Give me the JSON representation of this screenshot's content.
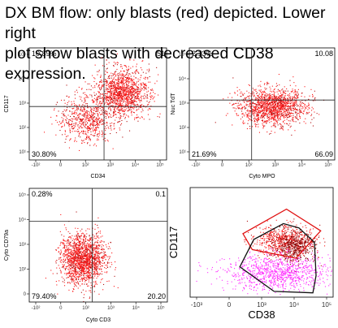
{
  "caption": {
    "line1": "DX BM flow: only blasts (red) depicted. Lower right",
    "line2": "plot show blasts with decreased CD38 expression."
  },
  "colors": {
    "blast": "#ff1a1a",
    "blast_dark": "#b01010",
    "dark_red": "#8b0a0a",
    "magenta": "#ff2bff",
    "gate_red": "#e01010",
    "gate_black": "#111111",
    "axis": "#000000"
  },
  "chart_data": [
    {
      "type": "scatter",
      "title": "",
      "xlabel": "CD34",
      "ylabel": "CD117",
      "x_ticks": [
        "-10²",
        "0",
        "10²",
        "10³",
        "10⁴",
        "10⁵"
      ],
      "y_ticks": [
        "10¹",
        "10²",
        "10³",
        "10⁴",
        "10⁵"
      ],
      "quadrant_percent": {
        "upper_left": "10.89%",
        "upper_right": "51",
        "lower_left": "30.80%"
      },
      "populations": [
        {
          "cx": 3.2,
          "cy": 3.3,
          "sx": 0.55,
          "sy": 0.45,
          "n": 1300,
          "color": "blast"
        },
        {
          "cx": 1.8,
          "cy": 2.3,
          "sx": 0.6,
          "sy": 0.45,
          "n": 700,
          "color": "blast"
        }
      ],
      "xlim": [
        -0.6,
        5.0
      ],
      "ylim": [
        0.7,
        5.0
      ],
      "gate": [
        2.45,
        2.75
      ]
    },
    {
      "type": "scatter",
      "title": "",
      "xlabel": "Cyto MPO",
      "ylabel": "Nuc TdT",
      "x_ticks": [
        "-10²",
        "0",
        "10²",
        "10³",
        "10⁴",
        "10⁵"
      ],
      "y_ticks": [
        "10¹",
        "10²",
        "10³",
        "10⁴",
        "10⁵"
      ],
      "quadrant_percent": {
        "upper_left": "2.13%",
        "upper_right": "10.08",
        "lower_left": "21.69%",
        "lower_right": "66.09"
      },
      "populations": [
        {
          "cx": 2.6,
          "cy": 2.75,
          "sx": 0.65,
          "sy": 0.35,
          "n": 1500,
          "color": "blast"
        }
      ],
      "xlim": [
        -0.6,
        5.0
      ],
      "ylim": [
        0.7,
        5.0
      ],
      "gate": [
        1.8,
        3.0
      ]
    },
    {
      "type": "scatter",
      "title": "",
      "xlabel": "Cyto CD3",
      "ylabel": "Cyto CD79a",
      "x_ticks": [
        "-10²",
        "0",
        "10²",
        "10³",
        "10⁴",
        "10⁵"
      ],
      "y_ticks": [
        "0",
        "10²",
        "10³",
        "10⁴",
        "10⁵"
      ],
      "quadrant_percent": {
        "upper_left": "0.28%",
        "upper_right": "0.1",
        "lower_left": "79.40%",
        "lower_right": "20.20"
      },
      "populations": [
        {
          "cx": 1.55,
          "cy": 1.9,
          "sx": 0.45,
          "sy": 0.55,
          "n": 1700,
          "color": "blast"
        }
      ],
      "xlim": [
        -0.6,
        5.0
      ],
      "ylim": [
        0.0,
        5.0
      ],
      "gate": [
        1.95,
        3.55
      ]
    },
    {
      "type": "scatter",
      "title": "",
      "xlabel": "CD38",
      "ylabel": "CD117",
      "x_ticks": [
        "-10³",
        "0",
        "10³",
        "10⁴",
        "10⁵"
      ],
      "y_ticks": [],
      "populations": [
        {
          "cx": 3.05,
          "cy": 2.95,
          "sx": 0.45,
          "sy": 0.28,
          "n": 700,
          "color": "blast"
        },
        {
          "cx": 3.35,
          "cy": 2.75,
          "sx": 0.32,
          "sy": 0.25,
          "n": 420,
          "color": "dark_red"
        },
        {
          "cx": 2.85,
          "cy": 1.85,
          "sx": 0.85,
          "sy": 0.3,
          "n": 1000,
          "color": "magenta"
        }
      ],
      "xlim": [
        0.0,
        4.6
      ],
      "ylim": [
        1.0,
        4.8
      ],
      "red_gate": [
        [
          1.7,
          3.2
        ],
        [
          3.1,
          4.05
        ],
        [
          4.2,
          3.3
        ],
        [
          3.4,
          2.35
        ],
        [
          2.0,
          2.65
        ]
      ],
      "black_gate": [
        [
          1.6,
          2.05
        ],
        [
          2.05,
          3.0
        ],
        [
          3.0,
          3.55
        ],
        [
          3.5,
          3.4
        ],
        [
          4.0,
          2.9
        ],
        [
          4.05,
          1.75
        ],
        [
          3.95,
          1.15
        ],
        [
          2.7,
          1.2
        ]
      ]
    }
  ]
}
